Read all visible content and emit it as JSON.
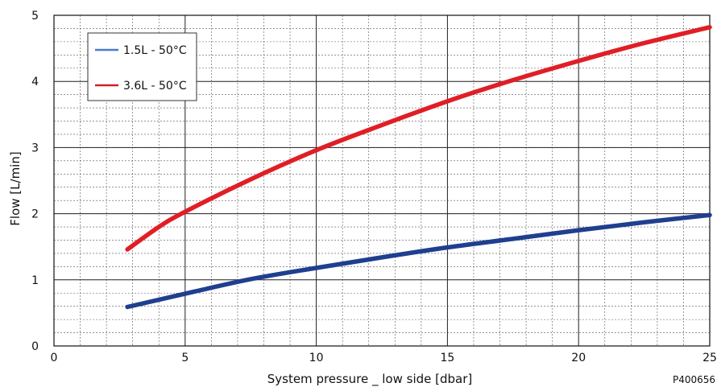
{
  "chart_data": {
    "type": "line",
    "xlabel": "System pressure _ low side [dbar]",
    "ylabel": "Flow  [L/min]",
    "xlim": [
      0,
      25
    ],
    "ylim": [
      0,
      5
    ],
    "x_ticks": [
      0,
      5,
      10,
      15,
      20,
      25
    ],
    "y_ticks": [
      0,
      1,
      2,
      3,
      4,
      5
    ],
    "x_minor_step": 1,
    "y_minor_step": 0.2,
    "grid": true,
    "legend_position": "top-left",
    "series": [
      {
        "name": "1.5L - 50°C",
        "color": "#1f3f8f",
        "legend_color": "#4a7ac8",
        "x": [
          2.8,
          5,
          7.5,
          10,
          12.5,
          15,
          17.5,
          20,
          22.5,
          25
        ],
        "y": [
          0.59,
          0.79,
          1.01,
          1.18,
          1.34,
          1.49,
          1.62,
          1.75,
          1.87,
          1.98
        ]
      },
      {
        "name": "3.6L - 50°C",
        "color": "#e01e26",
        "legend_color": "#cc2229",
        "x": [
          2.8,
          4,
          5,
          7.5,
          10,
          12.5,
          15,
          17.5,
          20,
          22.5,
          25
        ],
        "y": [
          1.46,
          1.8,
          2.03,
          2.52,
          2.96,
          3.34,
          3.7,
          4.02,
          4.31,
          4.58,
          4.82
        ]
      }
    ]
  },
  "figure_code": "P400656"
}
